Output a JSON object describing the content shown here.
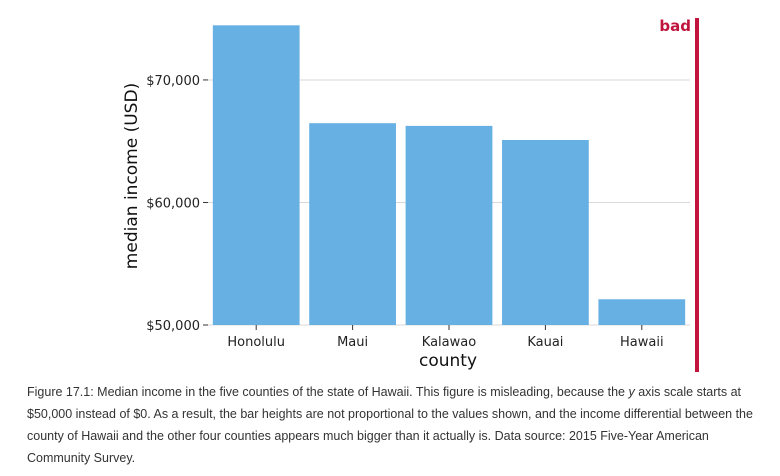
{
  "chart_data": {
    "type": "bar",
    "categories": [
      "Honolulu",
      "Maui",
      "Kalawao",
      "Kauai",
      "Hawaii"
    ],
    "values": [
      74460,
      66470,
      66250,
      65100,
      52100
    ],
    "xlabel": "county",
    "ylabel": "median income (USD)",
    "ylim": [
      50000,
      75300
    ],
    "yticks": [
      50000,
      60000,
      70000
    ],
    "ytick_labels": [
      "$50,000",
      "$60,000",
      "$70,000"
    ],
    "grid": "horizontal",
    "bar_color": "#67b0e4",
    "badge": {
      "text": "bad",
      "color": "#c0143c"
    }
  },
  "caption": {
    "before_italic": "Figure 17.1: Median income in the five counties of the state of Hawaii. This figure is misleading, because the ",
    "italic": "y",
    "after_italic": " axis scale starts at $50,000 instead of $0. As a result, the bar heights are not proportional to the values shown, and the income differential between the county of Hawaii and the other four counties appears much bigger than it actually is. Data source: 2015 Five-Year American Community Survey."
  }
}
